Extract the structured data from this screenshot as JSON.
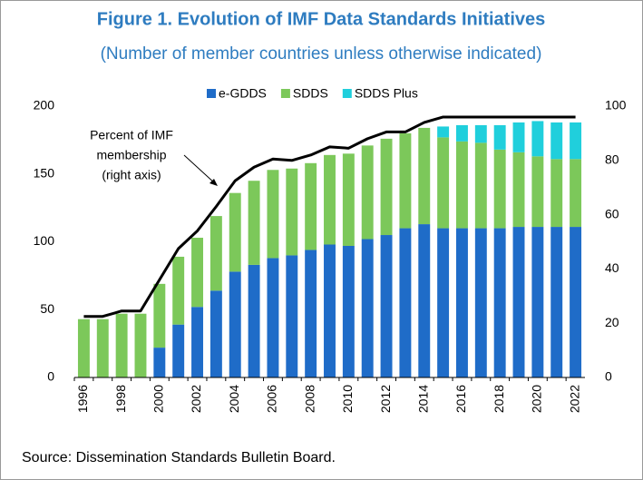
{
  "chart_data": {
    "type": "bar",
    "title": "Figure 1. Evolution of IMF Data Standards Initiatives",
    "subtitle": "(Number of member countries unless otherwise indicated)",
    "source": "Source: Dissemination Standards Bulletin Board.",
    "annotation": [
      "Percent of IMF",
      "membership",
      "(right axis)"
    ],
    "stacked": true,
    "categories": [
      "1996",
      null,
      "1998",
      null,
      "2000",
      null,
      "2002",
      null,
      "2004",
      null,
      "2006",
      null,
      "2008",
      null,
      "2010",
      null,
      "2012",
      null,
      "2014",
      null,
      "2016",
      null,
      "2018",
      null,
      "2020",
      null,
      "2022"
    ],
    "series": [
      {
        "name": "e-GDDS",
        "color": "#1f6cc8",
        "values": [
          0,
          0,
          0,
          0,
          22,
          39,
          52,
          64,
          78,
          83,
          88,
          90,
          94,
          98,
          97,
          102,
          105,
          110,
          113,
          110,
          110,
          110,
          110,
          111,
          111,
          111,
          111
        ]
      },
      {
        "name": "SDDS",
        "color": "#7cc85a",
        "values": [
          43,
          43,
          47,
          47,
          47,
          50,
          51,
          55,
          58,
          62,
          65,
          64,
          64,
          66,
          68,
          69,
          71,
          70,
          71,
          67,
          64,
          63,
          58,
          55,
          52,
          50,
          50
        ]
      },
      {
        "name": "SDDS Plus",
        "color": "#20cfdc",
        "values": [
          0,
          0,
          0,
          0,
          0,
          0,
          0,
          0,
          0,
          0,
          0,
          0,
          0,
          0,
          0,
          0,
          0,
          0,
          0,
          8,
          12,
          13,
          18,
          22,
          26,
          27,
          27
        ]
      },
      {
        "type": "line",
        "axis": "y2",
        "color": "#000000",
        "values": [
          22.5,
          22.5,
          24.5,
          24.5,
          36,
          47.5,
          54,
          63,
          72.5,
          77.5,
          80.5,
          80,
          82,
          85,
          84.5,
          88,
          90.5,
          90.5,
          94,
          96,
          96,
          96,
          96,
          96,
          96,
          96,
          96
        ]
      }
    ],
    "ylim": [
      0,
      200
    ],
    "yticks": [
      0,
      50,
      100,
      150,
      200
    ],
    "y2lim": [
      0,
      100
    ],
    "y2ticks": [
      0,
      20,
      40,
      60,
      80,
      100
    ],
    "legend": "top",
    "grid": false
  }
}
